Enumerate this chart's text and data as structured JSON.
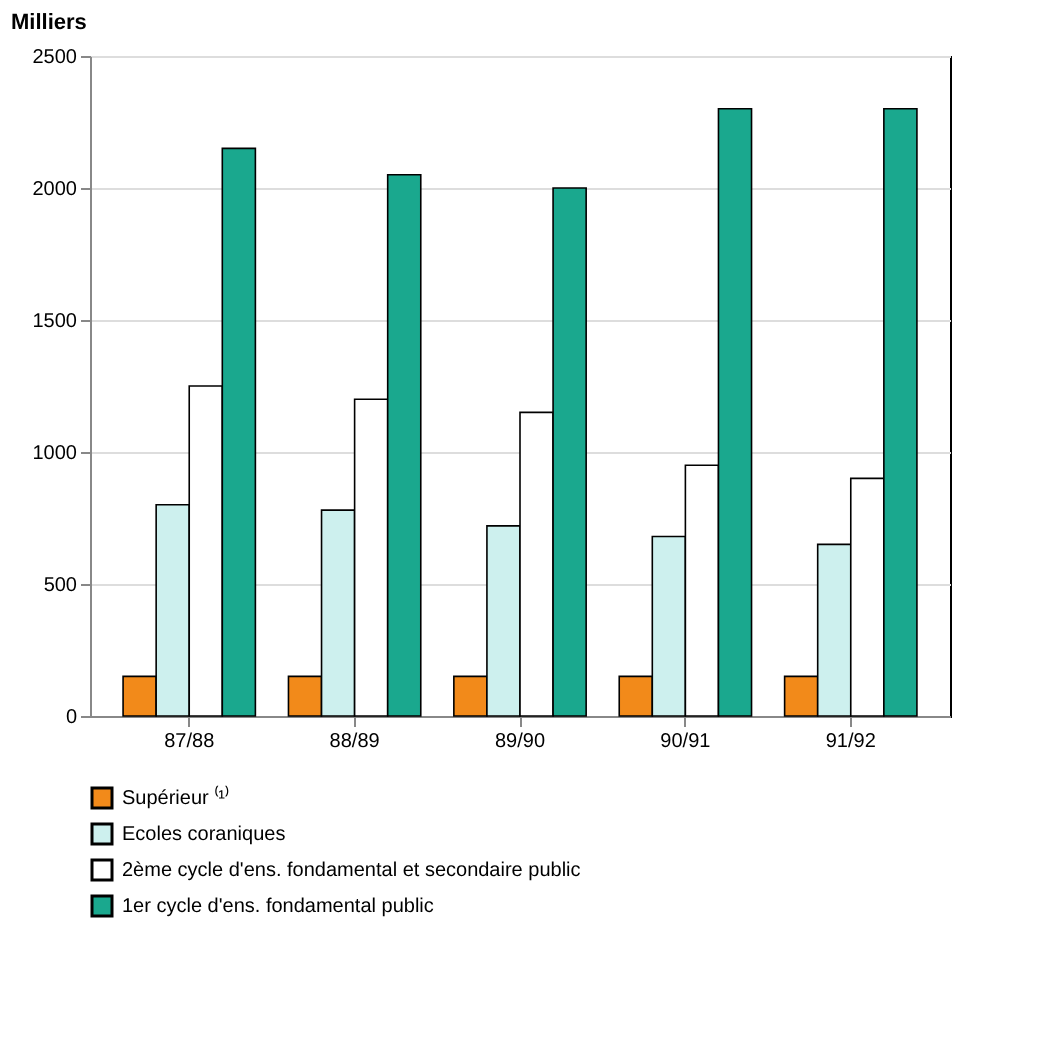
{
  "chart_data": {
    "type": "bar",
    "ylabel": "Milliers",
    "categories": [
      "87/88",
      "88/89",
      "89/90",
      "90/91",
      "91/92"
    ],
    "series": [
      {
        "name": "Supérieur ⁽¹⁾",
        "color": "#f28a1a",
        "values": [
          150,
          150,
          150,
          150,
          150
        ]
      },
      {
        "name": "Ecoles coraniques",
        "color": "#cdf0ee",
        "values": [
          800,
          780,
          720,
          680,
          650
        ]
      },
      {
        "name": "2ème cycle d'ens. fondamental et secondaire public",
        "color": "#ffffff",
        "values": [
          1250,
          1200,
          1150,
          950,
          900
        ]
      },
      {
        "name": "1er cycle d'ens. fondamental public",
        "color": "#1aa88e",
        "values": [
          2150,
          2050,
          2000,
          2300,
          2300
        ]
      }
    ],
    "ylim": [
      0,
      2500
    ],
    "yticks": [
      0,
      500,
      1000,
      1500,
      2000,
      2500
    ],
    "grid": "y",
    "legend": "bottom"
  }
}
